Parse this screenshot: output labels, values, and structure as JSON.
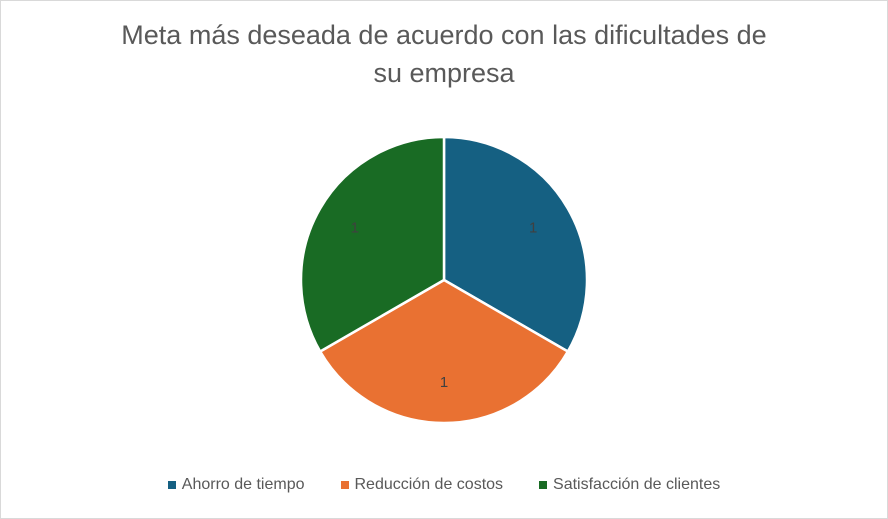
{
  "chart_data": {
    "type": "pie",
    "title_lines": [
      "Meta más deseada de acuerdo con las dificultades de",
      "su empresa"
    ],
    "categories": [
      "Ahorro de tiempo",
      "Reducción de costos",
      "Satisfacción de clientes"
    ],
    "values": [
      1,
      1,
      1
    ],
    "data_labels": [
      "1",
      "1",
      "1"
    ],
    "colors": [
      "#156082",
      "#E97132",
      "#196B24"
    ],
    "legend_position": "bottom"
  }
}
